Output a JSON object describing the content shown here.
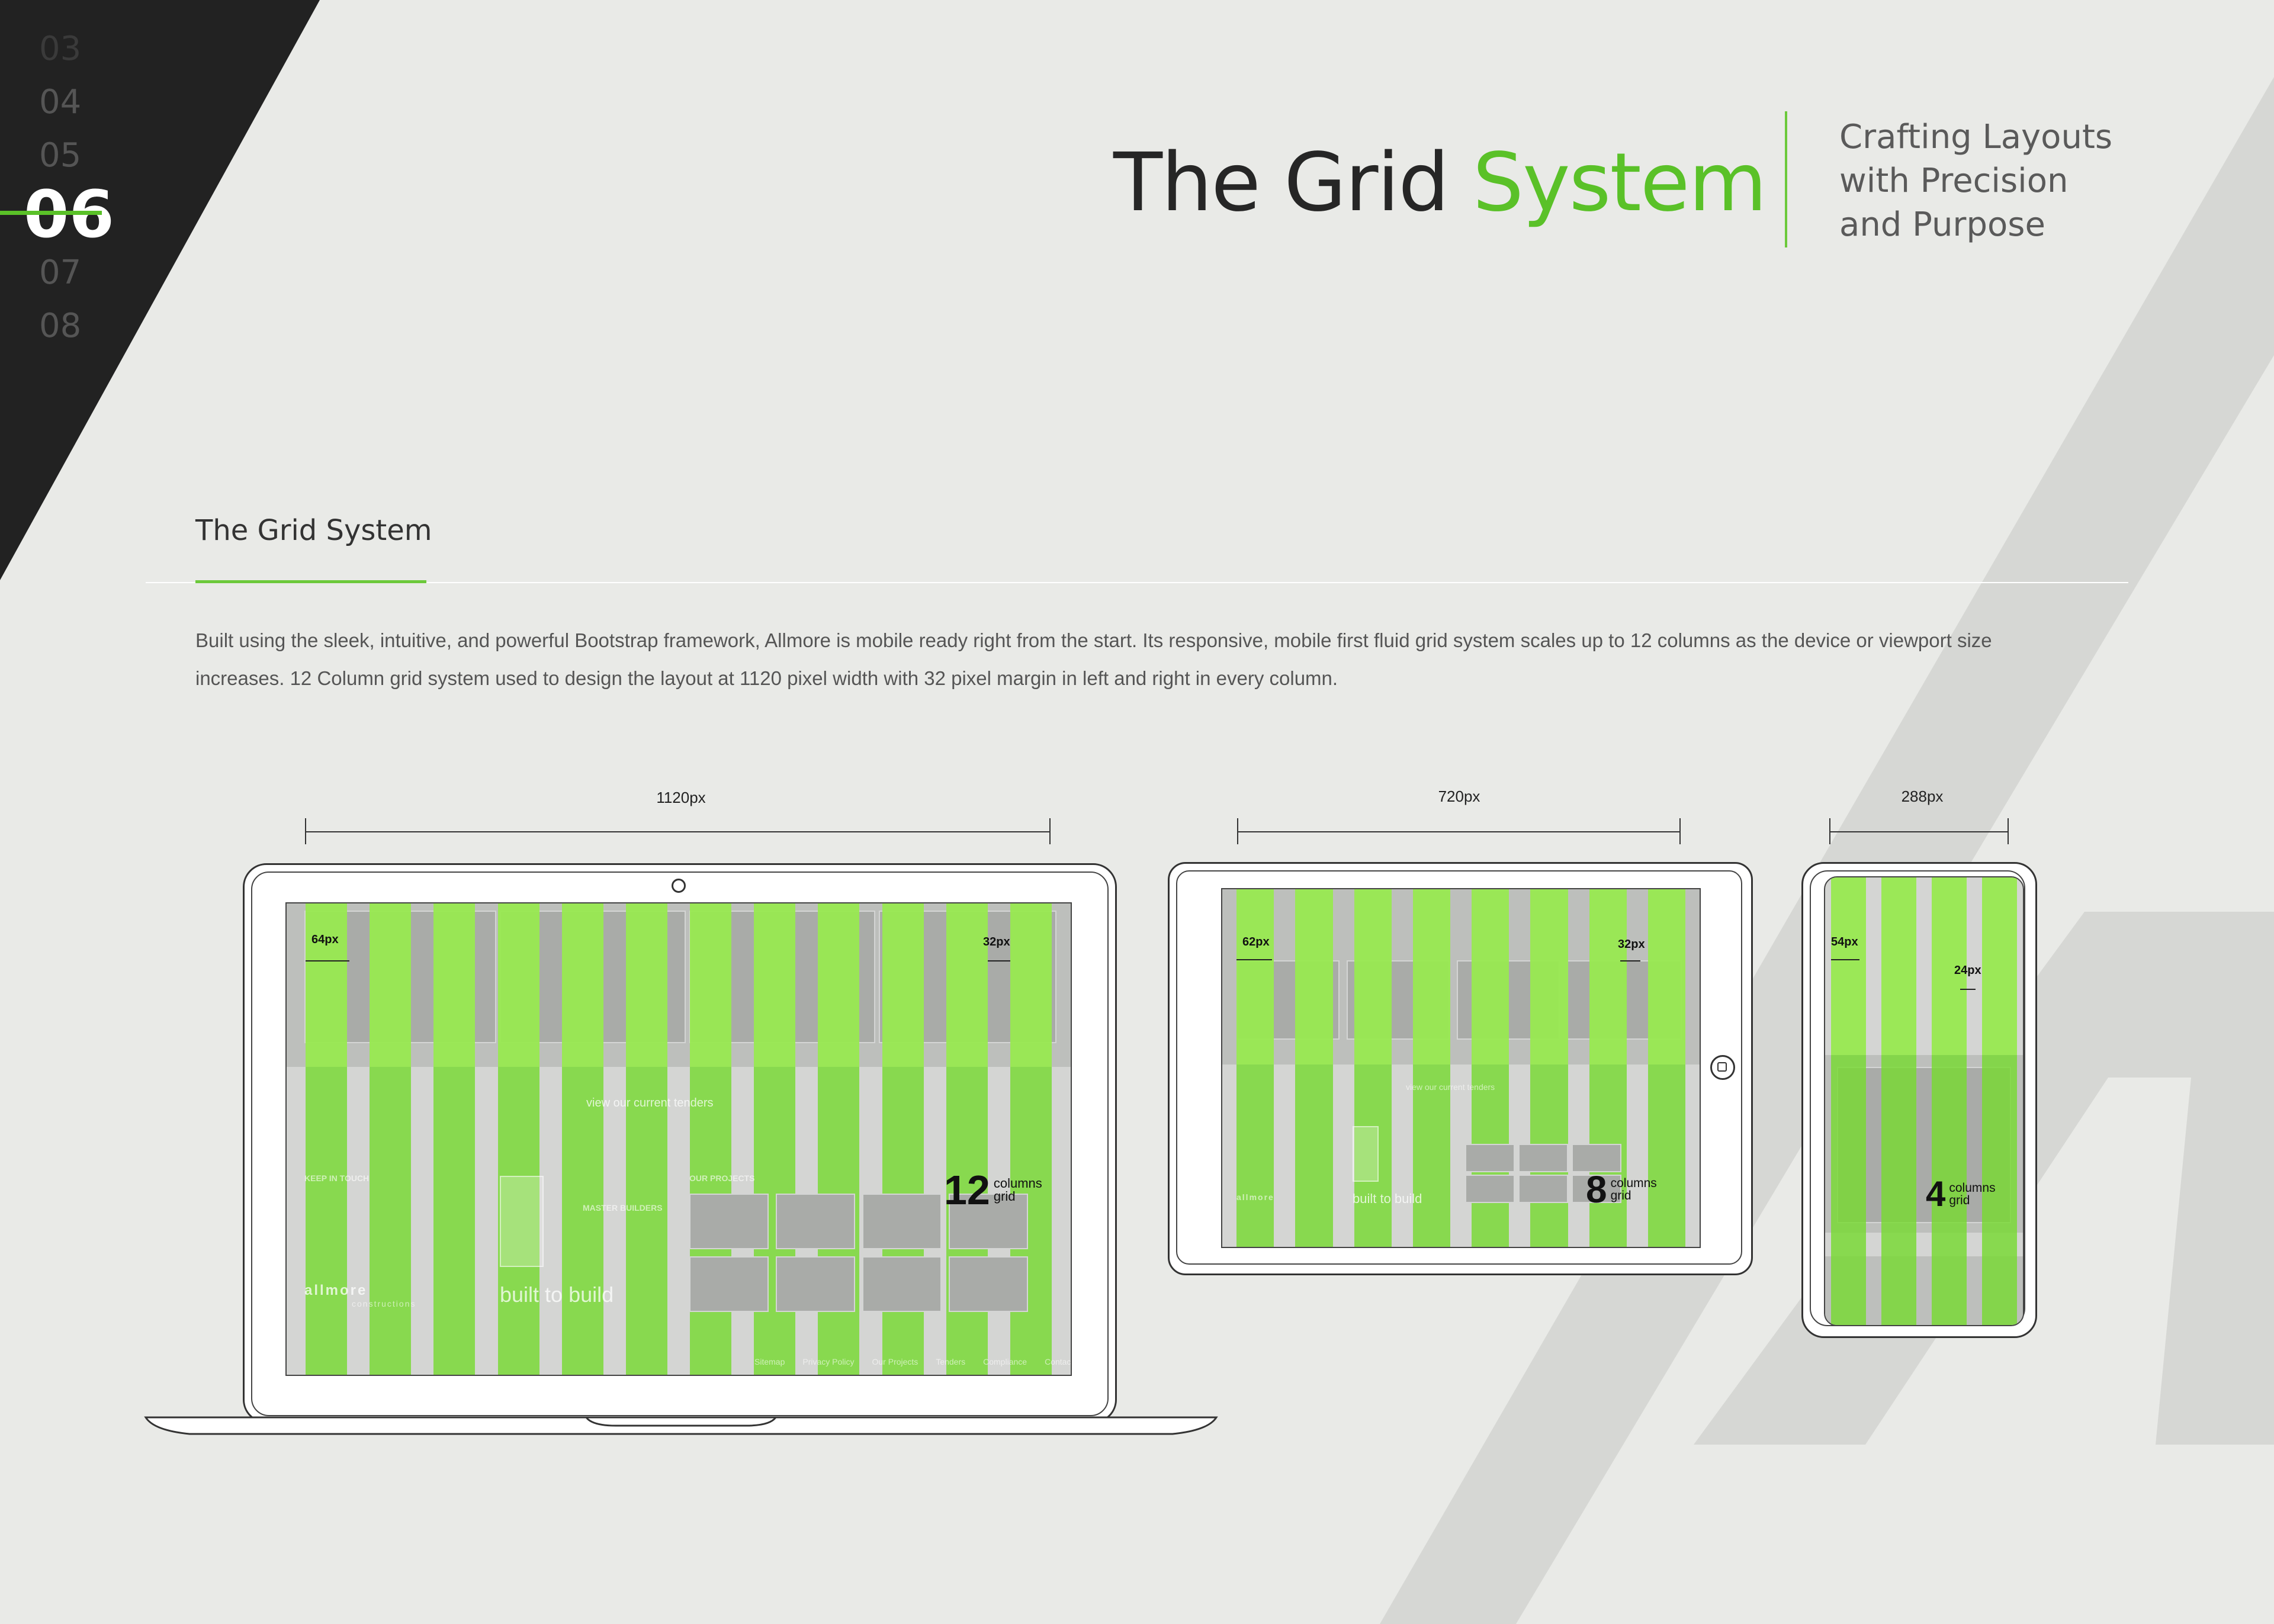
{
  "nav": {
    "numbers": [
      "03",
      "04",
      "05",
      "06",
      "07",
      "08"
    ],
    "active": "06"
  },
  "header": {
    "title_part1": "The Grid",
    "title_part2": "System",
    "subtitle_line1": "Crafting Layouts",
    "subtitle_line2": "with Precision",
    "subtitle_line3": "and Purpose"
  },
  "section": {
    "title": "The Grid System",
    "description": "Built using the sleek, intuitive, and powerful Bootstrap framework, Allmore is mobile ready right from the start. Its responsive, mobile first fluid grid system scales up to 12 columns as the device or viewport size increases. 12 Column grid system used to design the layout at 1120 pixel width with 32 pixel margin in left and right in every column."
  },
  "devices": {
    "laptop": {
      "width_label": "1120px",
      "margin_label": "64px",
      "gutter_label": "32px",
      "grid_count": "12",
      "grid_word1": "columns",
      "grid_word2": "grid",
      "columns": 12,
      "tender_text": "view our current tenders",
      "keep_in_touch": "KEEP IN TOUCH",
      "our_projects": "OUR PROJECTS",
      "brand": "allmore",
      "brand_sub": "constructions",
      "tagline": "built to build",
      "badge": "MASTER BUILDERS",
      "footer_links": [
        "Sitemap",
        "Privacy Policy",
        "Our Projects",
        "Tenders",
        "Compliance",
        "Contact Us"
      ]
    },
    "tablet": {
      "width_label": "720px",
      "margin_label": "62px",
      "gutter_label": "32px",
      "grid_count": "8",
      "grid_word1": "columns",
      "grid_word2": "grid",
      "columns": 8,
      "tender_text": "view our current tenders",
      "brand": "allmore",
      "tagline": "built to build"
    },
    "phone": {
      "width_label": "288px",
      "margin_label": "54px",
      "gutter_label": "24px",
      "grid_count": "4",
      "grid_word1": "columns",
      "grid_word2": "grid",
      "columns": 4
    }
  },
  "colors": {
    "accent": "#5ac128",
    "grid_column": "#78d932",
    "dark_panel": "#222222",
    "background": "#e9eae7"
  }
}
